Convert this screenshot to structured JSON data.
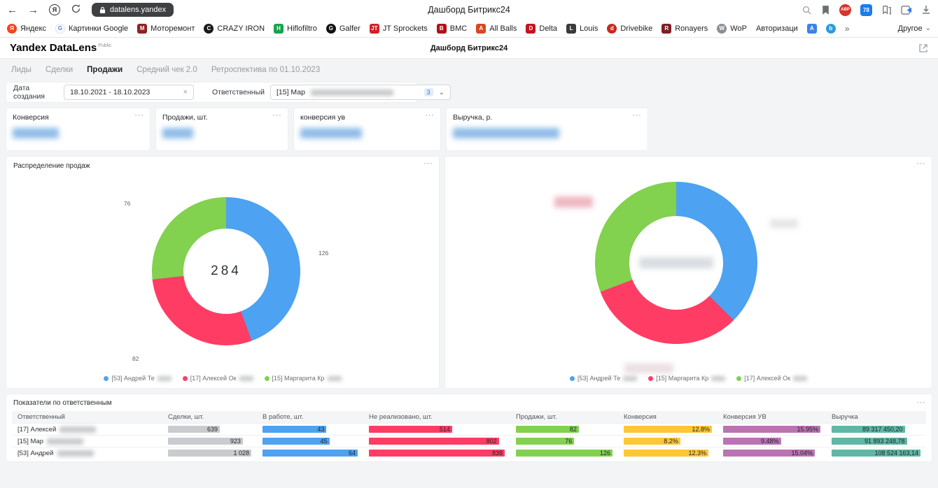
{
  "icons": {
    "back": "←",
    "forward": "→",
    "yandex": "Я",
    "kebab": "⋯",
    "close": "×",
    "chevron_down": "⌄",
    "chevron_right": "»"
  },
  "browser": {
    "url_text": "datalens.yandex",
    "page_title": "Дашборд Битрикс24",
    "adblock_label": "ABP",
    "tab_count": "78",
    "more_label": "Другое",
    "bookmarks": [
      {
        "label": "Яндекс",
        "fav": "Я",
        "color": "#FC3F1D",
        "shape": "circle"
      },
      {
        "label": "Картинки Google",
        "fav": "G",
        "color": "#FFFFFF",
        "text_color": "#4285F4",
        "shape": "circle"
      },
      {
        "label": "Моторемонт",
        "fav": "М",
        "color": "#8E2323"
      },
      {
        "label": "CRAZY IRON",
        "fav": "C",
        "color": "#1A1A1A",
        "shape": "circle"
      },
      {
        "label": "Hiflofiltro",
        "fav": "H",
        "color": "#18A24C"
      },
      {
        "label": "Galfer",
        "fav": "G",
        "color": "#111111",
        "shape": "circle"
      },
      {
        "label": "JT Sprockets",
        "fav": "JT",
        "color": "#D32027"
      },
      {
        "label": "BMC",
        "fav": "B",
        "color": "#B01116"
      },
      {
        "label": "All Balls",
        "fav": "A",
        "color": "#D8471F"
      },
      {
        "label": "Delta",
        "fav": "D",
        "color": "#C3131C"
      },
      {
        "label": "Louis",
        "fav": "L",
        "color": "#3A3A3A"
      },
      {
        "label": "Drivebike",
        "fav": "d",
        "color": "#C72B1E",
        "shape": "circle"
      },
      {
        "label": "Ronayers",
        "fav": "R",
        "color": "#7C1F24"
      },
      {
        "label": "WoP",
        "fav": "W",
        "color": "#8A8F94",
        "shape": "circle"
      },
      {
        "label": "Авторизаци",
        "fav": "",
        "color": ""
      },
      {
        "label": "",
        "fav": "A",
        "color": "#3B82E8"
      },
      {
        "label": "",
        "fav": "b",
        "color": "#2D9CDB",
        "shape": "circle"
      }
    ]
  },
  "header": {
    "logo": "Yandex DataLens",
    "logo_badge": "Public",
    "title": "Дашборд Битрикс24"
  },
  "tabs": {
    "items": [
      {
        "label": "Лиды",
        "active": false
      },
      {
        "label": "Сделки",
        "active": false
      },
      {
        "label": "Продажи",
        "active": true
      },
      {
        "label": "Средний чек 2.0",
        "active": false
      },
      {
        "label": "Ретроспектива по 01.10.2023",
        "active": false
      }
    ]
  },
  "filters": {
    "date_label": "Дата создания",
    "date_value": "18.10.2021 - 18.10.2023",
    "resp_label": "Ответственный",
    "resp_value": "[15] Мар",
    "resp_badge": "3"
  },
  "kpis": [
    {
      "title": "Конверсия"
    },
    {
      "title": "Продажи, шт."
    },
    {
      "title": "конверсия ув"
    },
    {
      "title": "Выручка, р."
    }
  ],
  "chart_data": [
    {
      "type": "pie",
      "subtype": "donut",
      "title": "Распределение продаж",
      "center_label": "284",
      "legend_position": "bottom",
      "segments": [
        {
          "label": "[53] Андрей Те",
          "value": 126,
          "color": "#4DA2F1"
        },
        {
          "label": "[17] Алексей Ок",
          "value": 82,
          "color": "#FF3D64"
        },
        {
          "label": "[15] Маргарита Кр",
          "value": 76,
          "color": "#82D14F"
        }
      ]
    },
    {
      "type": "pie",
      "subtype": "donut",
      "title": "",
      "center_label": "",
      "legend_position": "bottom",
      "segments": [
        {
          "label": "[53] Андрей Те",
          "value": 108524163.14,
          "color": "#4DA2F1"
        },
        {
          "label": "[15] Маргарита Кр",
          "value": 91893248.78,
          "color": "#FF3D64"
        },
        {
          "label": "[17] Алексей Ок",
          "value": 89317450.2,
          "color": "#82D14F"
        }
      ]
    }
  ],
  "table": {
    "title": "Показатели по ответственным",
    "columns": [
      "Ответственный",
      "Сделки, шт.",
      "В работе, шт.",
      "Не реализовано, шт.",
      "Продажи, шт.",
      "Конверсия",
      "Конверсия УВ",
      "Выручка"
    ],
    "bar_colors": [
      "#C9CBCE",
      "#4DA2F1",
      "#FF3D64",
      "#82D14F",
      "#FFC636",
      "#BA74B3",
      "#5FB8A5"
    ],
    "rows": [
      {
        "name": "[17] Алексей",
        "values": [
          639,
          43,
          514,
          82,
          12.8,
          15.95,
          89317450.2
        ],
        "display": [
          "639",
          "43",
          "514",
          "82",
          "12.8%",
          "15.95%",
          "89 317 450,20"
        ]
      },
      {
        "name": "[15] Мар",
        "values": [
          923,
          45,
          802,
          76,
          8.2,
          9.48,
          91893248.78
        ],
        "display": [
          "923",
          "45",
          "802",
          "76",
          "8.2%",
          "9.48%",
          "91 893 248,78"
        ]
      },
      {
        "name": "[53] Андрей",
        "values": [
          1028,
          64,
          838,
          126,
          12.3,
          15.04,
          108524163.14
        ],
        "display": [
          "1 028",
          "64",
          "838",
          "126",
          "12.3%",
          "15.04%",
          "108 524 163,14"
        ]
      }
    ]
  }
}
